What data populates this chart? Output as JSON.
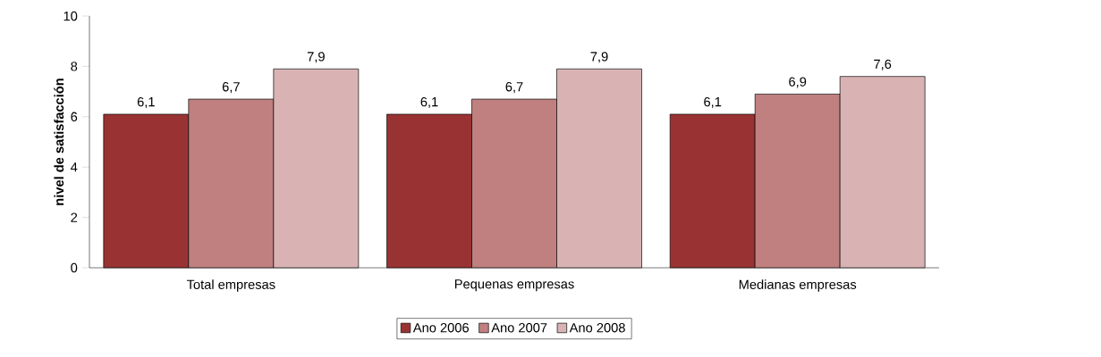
{
  "chart_data": {
    "type": "bar",
    "ylabel": "nivel de satisfacción",
    "categories": [
      "Total empresas",
      "Pequenas empresas",
      "Medianas empresas"
    ],
    "series": [
      {
        "name": "Ano 2006",
        "color": "#993333",
        "values": [
          6.1,
          6.1,
          6.1
        ],
        "value_labels": [
          "6,1",
          "6,1",
          "6,1"
        ]
      },
      {
        "name": "Ano 2007",
        "color": "#c08080",
        "values": [
          6.7,
          6.7,
          6.9
        ],
        "value_labels": [
          "6,7",
          "6,7",
          "6,9"
        ]
      },
      {
        "name": "Ano 2008",
        "color": "#d9b3b3",
        "values": [
          7.9,
          7.9,
          7.6
        ],
        "value_labels": [
          "7,9",
          "7,9",
          "7,6"
        ]
      }
    ],
    "ylim": [
      0,
      10
    ],
    "yticks": [
      0,
      2,
      4,
      6,
      8,
      10
    ],
    "grid": false,
    "legend": "bottom"
  }
}
